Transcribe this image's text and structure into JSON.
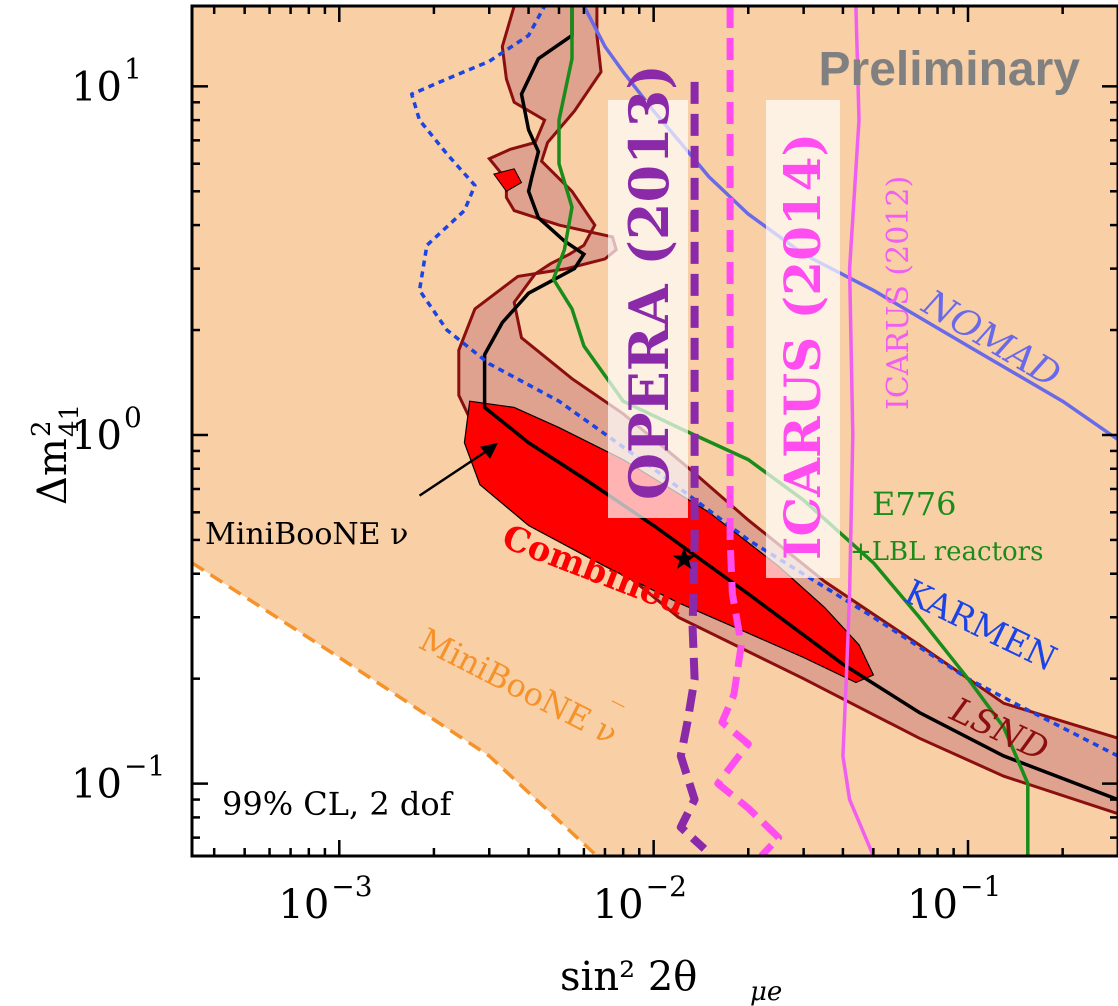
{
  "chart_data": {
    "type": "line",
    "xlabel": "sin² 2θ",
    "xlabel_sub": "μe",
    "ylabel": "Δm",
    "ylabel_sup": "2",
    "ylabel_sub": "41",
    "x_scale": "log",
    "y_scale": "log",
    "xlim": [
      0.00034,
      0.3
    ],
    "ylim": [
      0.062,
      17
    ],
    "grid": false,
    "x_ticks": [
      {
        "value": 0.001,
        "base": "10",
        "exp": "−3"
      },
      {
        "value": 0.01,
        "base": "10",
        "exp": "−2"
      },
      {
        "value": 0.1,
        "base": "10",
        "exp": "−1"
      }
    ],
    "y_ticks": [
      {
        "value": 0.1,
        "base": "10",
        "exp": "−1"
      },
      {
        "value": 1,
        "base": "10",
        "exp": "0"
      },
      {
        "value": 10,
        "base": "10",
        "exp": "1"
      }
    ],
    "colors": {
      "lsnd_fill": "#f9cfa6",
      "combined_band": "#d99a8a",
      "combined_edge": "#8b0f0f",
      "combined_inner": "#ff0000",
      "miniboone_nu": "#000000",
      "miniboone_nubar": "#f5922a",
      "karmen": "#1a44e6",
      "nomad": "#6a6ae8",
      "e776": "#1a8c1a",
      "opera": "#8a2aa8",
      "icarus2014": "#ff4df0",
      "icarus2012": "#f05ff0"
    },
    "series": [
      {
        "key": "miniboone_nubar",
        "points": [
          [
            0.00034,
            0.43
          ],
          [
            0.001,
            0.23
          ],
          [
            0.003,
            0.12
          ],
          [
            0.0066,
            0.062
          ]
        ]
      },
      {
        "key": "karmen",
        "points": [
          [
            0.3,
            0.12
          ],
          [
            0.15,
            0.165
          ],
          [
            0.1,
            0.2
          ],
          [
            0.05,
            0.3
          ],
          [
            0.02,
            0.5
          ],
          [
            0.01,
            0.8
          ],
          [
            0.005,
            1.25
          ],
          [
            0.003,
            1.6
          ],
          [
            0.0022,
            2.0
          ],
          [
            0.0018,
            2.6
          ],
          [
            0.0019,
            3.5
          ],
          [
            0.0025,
            4.4
          ],
          [
            0.0027,
            5.2
          ],
          [
            0.0022,
            6.4
          ],
          [
            0.0018,
            8.0
          ],
          [
            0.0017,
            9.5
          ],
          [
            0.0022,
            10.5
          ],
          [
            0.003,
            11.8
          ],
          [
            0.004,
            14
          ],
          [
            0.0045,
            17
          ]
        ]
      },
      {
        "key": "nomad",
        "points": [
          [
            0.3,
            0.97
          ],
          [
            0.2,
            1.25
          ],
          [
            0.1,
            1.8
          ],
          [
            0.05,
            2.6
          ],
          [
            0.03,
            3.3
          ],
          [
            0.02,
            4.3
          ],
          [
            0.015,
            5.5
          ],
          [
            0.012,
            7.0
          ],
          [
            0.01,
            8.5
          ],
          [
            0.008,
            11
          ],
          [
            0.007,
            13
          ],
          [
            0.006,
            17
          ]
        ]
      },
      {
        "key": "e776",
        "points": [
          [
            0.155,
            0.062
          ],
          [
            0.155,
            0.1
          ],
          [
            0.13,
            0.145
          ],
          [
            0.1,
            0.2
          ],
          [
            0.07,
            0.3
          ],
          [
            0.05,
            0.43
          ],
          [
            0.03,
            0.65
          ],
          [
            0.02,
            0.85
          ],
          [
            0.012,
            1.05
          ],
          [
            0.008,
            1.25
          ],
          [
            0.006,
            1.8
          ],
          [
            0.0055,
            2.3
          ],
          [
            0.0048,
            2.8
          ],
          [
            0.0052,
            3.4
          ],
          [
            0.0055,
            4.5
          ],
          [
            0.005,
            6.0
          ],
          [
            0.005,
            8.0
          ],
          [
            0.0055,
            12
          ],
          [
            0.0055,
            17
          ]
        ]
      },
      {
        "key": "opera",
        "points": [
          [
            0.0135,
            10.3
          ],
          [
            0.0135,
            5.0
          ],
          [
            0.0135,
            2.0
          ],
          [
            0.0135,
            1.0
          ],
          [
            0.0135,
            0.5
          ],
          [
            0.0133,
            0.28
          ],
          [
            0.0135,
            0.2
          ],
          [
            0.0128,
            0.15
          ],
          [
            0.0122,
            0.12
          ],
          [
            0.0135,
            0.09
          ],
          [
            0.0122,
            0.075
          ],
          [
            0.0145,
            0.065
          ]
        ]
      },
      {
        "key": "icarus2014",
        "points": [
          [
            0.0175,
            17
          ],
          [
            0.0175,
            5.0
          ],
          [
            0.0175,
            1.0
          ],
          [
            0.0175,
            0.5
          ],
          [
            0.0178,
            0.35
          ],
          [
            0.019,
            0.25
          ],
          [
            0.018,
            0.18
          ],
          [
            0.0165,
            0.15
          ],
          [
            0.02,
            0.13
          ],
          [
            0.018,
            0.115
          ],
          [
            0.016,
            0.1
          ],
          [
            0.02,
            0.085
          ],
          [
            0.025,
            0.07
          ],
          [
            0.022,
            0.062
          ]
        ]
      },
      {
        "key": "icarus2012",
        "points": [
          [
            0.044,
            17
          ],
          [
            0.045,
            8
          ],
          [
            0.042,
            3
          ],
          [
            0.043,
            1.0
          ],
          [
            0.042,
            0.35
          ],
          [
            0.041,
            0.2
          ],
          [
            0.04,
            0.12
          ],
          [
            0.042,
            0.09
          ],
          [
            0.05,
            0.062
          ]
        ]
      }
    ],
    "lsnd_band": {
      "outer": [
        [
          0.3,
          0.082
        ],
        [
          0.13,
          0.105
        ],
        [
          0.07,
          0.135
        ],
        [
          0.03,
          0.2
        ],
        [
          0.012,
          0.3
        ],
        [
          0.006,
          0.5
        ],
        [
          0.003,
          0.85
        ],
        [
          0.0024,
          1.3
        ],
        [
          0.0024,
          1.75
        ],
        [
          0.0027,
          2.3
        ],
        [
          0.0037,
          2.85
        ],
        [
          0.0053,
          3.0
        ],
        [
          0.007,
          3.2
        ],
        [
          0.0076,
          3.4
        ],
        [
          0.0074,
          3.7
        ],
        [
          0.005,
          4.0
        ],
        [
          0.0036,
          4.4
        ],
        [
          0.0034,
          4.8
        ],
        [
          0.0034,
          5.4
        ],
        [
          0.003,
          6.2
        ],
        [
          0.0035,
          6.6
        ],
        [
          0.0042,
          6.9
        ],
        [
          0.0045,
          8.0
        ],
        [
          0.0036,
          9.0
        ],
        [
          0.0034,
          10.5
        ],
        [
          0.0033,
          13
        ],
        [
          0.0036,
          17
        ],
        [
          0.0066,
          17
        ],
        [
          0.0066,
          14
        ],
        [
          0.0068,
          11
        ],
        [
          0.0056,
          8.5
        ],
        [
          0.0046,
          6.9
        ],
        [
          0.0044,
          6.1
        ],
        [
          0.0055,
          5.0
        ],
        [
          0.0065,
          4.0
        ],
        [
          0.006,
          3.5
        ],
        [
          0.0054,
          3.3
        ],
        [
          0.0047,
          3.1
        ],
        [
          0.0042,
          2.9
        ],
        [
          0.0036,
          2.4
        ],
        [
          0.0038,
          1.9
        ],
        [
          0.0055,
          1.45
        ],
        [
          0.008,
          1.15
        ],
        [
          0.013,
          0.8
        ],
        [
          0.02,
          0.57
        ],
        [
          0.035,
          0.38
        ],
        [
          0.07,
          0.25
        ],
        [
          0.13,
          0.17
        ],
        [
          0.3,
          0.135
        ]
      ],
      "centerline": [
        [
          0.3,
          0.09
        ],
        [
          0.13,
          0.12
        ],
        [
          0.07,
          0.16
        ],
        [
          0.04,
          0.22
        ],
        [
          0.02,
          0.35
        ],
        [
          0.01,
          0.55
        ],
        [
          0.006,
          0.75
        ],
        [
          0.004,
          0.95
        ],
        [
          0.0029,
          1.2
        ],
        [
          0.0029,
          1.7
        ],
        [
          0.0033,
          2.1
        ],
        [
          0.004,
          2.55
        ],
        [
          0.0056,
          3.0
        ],
        [
          0.006,
          3.3
        ],
        [
          0.0052,
          3.6
        ],
        [
          0.0043,
          4.2
        ],
        [
          0.004,
          5.0
        ],
        [
          0.0041,
          5.5
        ],
        [
          0.0043,
          6.5
        ],
        [
          0.004,
          7.5
        ],
        [
          0.0038,
          9.5
        ],
        [
          0.0043,
          12
        ],
        [
          0.0055,
          14
        ],
        [
          0.0055,
          17
        ]
      ]
    },
    "combined_region": [
      [
        0.0026,
        1.25
      ],
      [
        0.0036,
        1.2
      ],
      [
        0.005,
        1.05
      ],
      [
        0.008,
        0.85
      ],
      [
        0.015,
        0.6
      ],
      [
        0.025,
        0.42
      ],
      [
        0.035,
        0.32
      ],
      [
        0.045,
        0.25
      ],
      [
        0.05,
        0.205
      ],
      [
        0.044,
        0.195
      ],
      [
        0.03,
        0.23
      ],
      [
        0.02,
        0.27
      ],
      [
        0.012,
        0.33
      ],
      [
        0.007,
        0.42
      ],
      [
        0.004,
        0.55
      ],
      [
        0.0028,
        0.72
      ],
      [
        0.0025,
        0.95
      ]
    ],
    "combined_island": [
      [
        0.0031,
        5.6
      ],
      [
        0.0036,
        5.8
      ],
      [
        0.0038,
        5.3
      ],
      [
        0.0034,
        5.0
      ]
    ],
    "best_fit": {
      "x": 0.0125,
      "y": 0.44
    },
    "labels": {
      "preliminary": "Preliminary",
      "opera": "OPERA (2013)",
      "icarus2014": "ICARUS (2014)",
      "icarus2012": "ICARUS (2012)",
      "nomad": "NOMAD",
      "e776": "E776",
      "e776_sub": "+LBL reactors",
      "karmen": "KARMEN",
      "lsnd": "LSND",
      "combined": "Combined",
      "miniboone_nu": "MiniBooNE ν",
      "miniboone_nubar": "MiniBooNE ν",
      "nubar_bar": "‾",
      "cl": "99% CL, 2 dof"
    }
  }
}
